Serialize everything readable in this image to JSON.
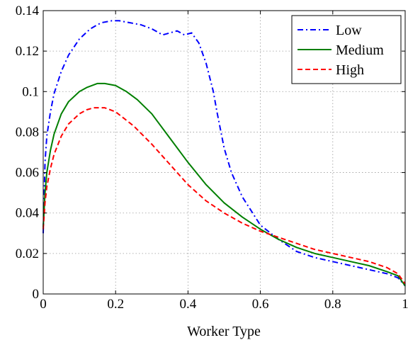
{
  "chart_data": {
    "type": "line",
    "xlabel": "Worker Type",
    "ylabel": "",
    "xlim": [
      0,
      1
    ],
    "ylim": [
      0,
      0.14
    ],
    "xticks": [
      0,
      0.2,
      0.4,
      0.6,
      0.8,
      1
    ],
    "xtick_labels": [
      "0",
      "0.2",
      "0.4",
      "0.6",
      "0.8",
      "1"
    ],
    "yticks": [
      0,
      0.02,
      0.04,
      0.06,
      0.08,
      0.1,
      0.12,
      0.14
    ],
    "ytick_labels": [
      "0",
      "0.02",
      "0.04",
      "0.06",
      "0.08",
      "0.1",
      "0.12",
      "0.14"
    ],
    "grid": true,
    "legend_position": "top-right",
    "series": [
      {
        "name": "Low",
        "color": "#0000ff",
        "dash": "dashdot",
        "x": [
          0,
          0.005,
          0.01,
          0.02,
          0.03,
          0.05,
          0.07,
          0.1,
          0.13,
          0.16,
          0.19,
          0.21,
          0.24,
          0.27,
          0.3,
          0.33,
          0.35,
          0.37,
          0.39,
          0.41,
          0.43,
          0.45,
          0.47,
          0.48,
          0.49,
          0.5,
          0.52,
          0.55,
          0.6,
          0.65,
          0.7,
          0.75,
          0.8,
          0.85,
          0.9,
          0.95,
          0.98,
          1.0
        ],
        "y": [
          0.03,
          0.065,
          0.078,
          0.09,
          0.099,
          0.11,
          0.118,
          0.126,
          0.131,
          0.134,
          0.135,
          0.135,
          0.134,
          0.133,
          0.131,
          0.128,
          0.129,
          0.13,
          0.128,
          0.129,
          0.124,
          0.114,
          0.1,
          0.09,
          0.081,
          0.072,
          0.06,
          0.048,
          0.034,
          0.027,
          0.021,
          0.018,
          0.016,
          0.014,
          0.012,
          0.01,
          0.008,
          0.004
        ]
      },
      {
        "name": "Medium",
        "color": "#007f00",
        "dash": "solid",
        "x": [
          0,
          0.005,
          0.01,
          0.02,
          0.03,
          0.05,
          0.07,
          0.1,
          0.12,
          0.15,
          0.17,
          0.2,
          0.23,
          0.26,
          0.3,
          0.35,
          0.4,
          0.45,
          0.5,
          0.55,
          0.6,
          0.65,
          0.7,
          0.75,
          0.8,
          0.85,
          0.9,
          0.95,
          0.98,
          1.0
        ],
        "y": [
          0.033,
          0.05,
          0.06,
          0.071,
          0.079,
          0.089,
          0.095,
          0.1,
          0.102,
          0.104,
          0.104,
          0.103,
          0.1,
          0.096,
          0.089,
          0.077,
          0.065,
          0.054,
          0.045,
          0.038,
          0.032,
          0.027,
          0.023,
          0.02,
          0.018,
          0.016,
          0.014,
          0.011,
          0.009,
          0.004
        ]
      },
      {
        "name": "High",
        "color": "#ff0000",
        "dash": "dashed",
        "x": [
          0,
          0.005,
          0.01,
          0.02,
          0.03,
          0.05,
          0.07,
          0.1,
          0.12,
          0.14,
          0.17,
          0.2,
          0.25,
          0.3,
          0.35,
          0.4,
          0.45,
          0.5,
          0.55,
          0.6,
          0.65,
          0.7,
          0.75,
          0.8,
          0.85,
          0.9,
          0.95,
          0.98,
          1.0
        ],
        "y": [
          0.032,
          0.045,
          0.053,
          0.062,
          0.069,
          0.078,
          0.084,
          0.089,
          0.091,
          0.092,
          0.092,
          0.09,
          0.083,
          0.074,
          0.064,
          0.054,
          0.046,
          0.04,
          0.035,
          0.031,
          0.028,
          0.025,
          0.022,
          0.02,
          0.018,
          0.016,
          0.013,
          0.01,
          0.005
        ]
      }
    ]
  }
}
